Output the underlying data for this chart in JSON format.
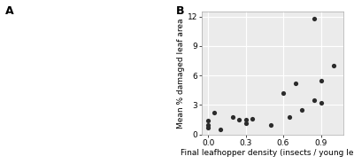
{
  "x": [
    0.0,
    0.0,
    0.0,
    0.05,
    0.1,
    0.2,
    0.25,
    0.3,
    0.3,
    0.35,
    0.5,
    0.6,
    0.65,
    0.7,
    0.75,
    0.85,
    0.85,
    0.9,
    0.9,
    1.0
  ],
  "y": [
    1.4,
    1.0,
    0.7,
    2.2,
    0.5,
    1.8,
    1.5,
    1.1,
    1.5,
    1.6,
    1.0,
    4.2,
    1.8,
    5.2,
    2.5,
    11.8,
    3.5,
    5.5,
    3.2,
    7.0
  ],
  "xlabel": "Final leafhopper density (insects / young leaf)",
  "ylabel": "Mean % damaged leaf area",
  "panel_label_left": "A",
  "panel_label_right": "B",
  "xlim": [
    -0.05,
    1.08
  ],
  "ylim": [
    0,
    12.5
  ],
  "xticks": [
    0.0,
    0.3,
    0.6,
    0.9
  ],
  "yticks": [
    0,
    3,
    6,
    9,
    12
  ],
  "marker_color": "#2b2b2b",
  "marker_size": 14,
  "bg_color": "#ebebeb",
  "grid_color": "#ffffff",
  "label_fontsize": 6.5,
  "tick_fontsize": 6.5,
  "panel_label_fontsize": 9
}
